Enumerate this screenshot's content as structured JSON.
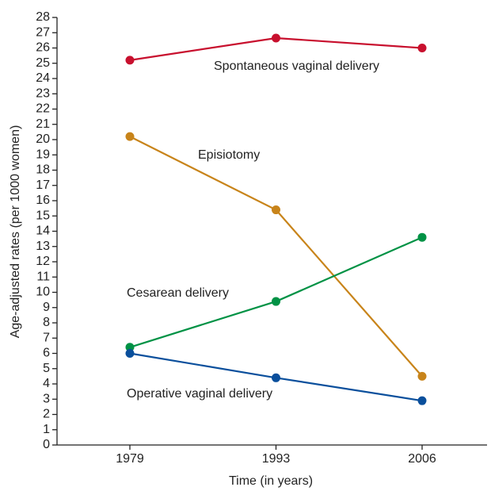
{
  "chart_data": {
    "type": "line",
    "x_label": "Time (in years)",
    "y_label": "Age-adjusted rates (per 1000 women)",
    "categories": [
      "1979",
      "1993",
      "2006"
    ],
    "ylim": [
      0,
      28
    ],
    "yticks": [
      0,
      1,
      2,
      3,
      4,
      5,
      6,
      7,
      8,
      9,
      10,
      11,
      12,
      13,
      14,
      15,
      16,
      17,
      18,
      19,
      20,
      21,
      22,
      23,
      24,
      25,
      26,
      27,
      28
    ],
    "series": [
      {
        "name": "Spontaneous vaginal delivery",
        "color": "#c8102e",
        "values": [
          25.2,
          26.65,
          26.0
        ]
      },
      {
        "name": "Episiotomy",
        "color": "#c8841a",
        "values": [
          20.2,
          15.4,
          4.5
        ]
      },
      {
        "name": "Cesarean delivery",
        "color": "#009245",
        "values": [
          6.4,
          9.4,
          13.6
        ]
      },
      {
        "name": "Operative vaginal delivery",
        "color": "#0a4f9c",
        "values": [
          6.0,
          4.4,
          2.9
        ]
      }
    ]
  }
}
